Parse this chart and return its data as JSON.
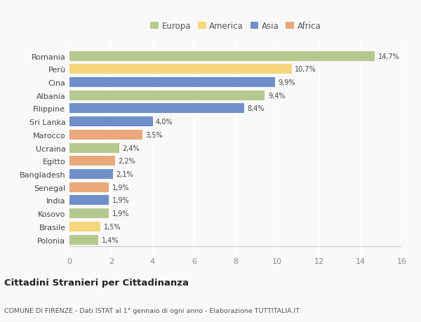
{
  "countries": [
    "Romania",
    "Perù",
    "Cina",
    "Albania",
    "Filippine",
    "Sri Lanka",
    "Marocco",
    "Ucraina",
    "Egitto",
    "Bangladesh",
    "Senegal",
    "India",
    "Kosovo",
    "Brasile",
    "Polonia"
  ],
  "values": [
    14.7,
    10.7,
    9.9,
    9.4,
    8.4,
    4.0,
    3.5,
    2.4,
    2.2,
    2.1,
    1.9,
    1.9,
    1.9,
    1.5,
    1.4
  ],
  "regions": [
    "Europa",
    "America",
    "Asia",
    "Europa",
    "Asia",
    "Asia",
    "Africa",
    "Europa",
    "Africa",
    "Asia",
    "Africa",
    "Asia",
    "Europa",
    "America",
    "Europa"
  ],
  "colors": {
    "Europa": "#b5c98e",
    "America": "#f5d87c",
    "Asia": "#6e8fc9",
    "Africa": "#e8a87c"
  },
  "xlim": [
    0,
    16
  ],
  "xticks": [
    0,
    2,
    4,
    6,
    8,
    10,
    12,
    14,
    16
  ],
  "title": "Cittadini Stranieri per Cittadinanza",
  "subtitle": "COMUNE DI FIRENZE - Dati ISTAT al 1° gennaio di ogni anno - Elaborazione TUTTITALIA.IT",
  "background_color": "#f9f9f9",
  "plot_bg_color": "#f9f9f9",
  "grid_color": "#ffffff",
  "bar_height": 0.75,
  "legend_order": [
    "Europa",
    "America",
    "Asia",
    "Africa"
  ]
}
